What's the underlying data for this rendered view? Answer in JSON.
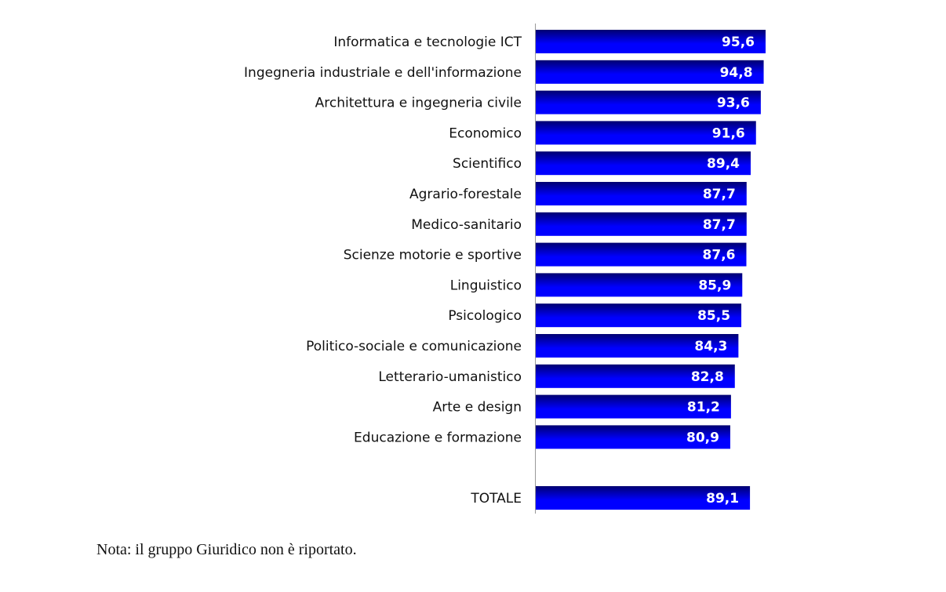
{
  "chart_data": {
    "type": "bar",
    "orientation": "horizontal",
    "categories": [
      "Informatica e tecnologie ICT",
      "Ingegneria industriale e dell'informazione",
      "Architettura e ingegneria civile",
      "Economico",
      "Scientifico",
      "Agrario-forestale",
      "Medico-sanitario",
      "Scienze motorie e sportive",
      "Linguistico",
      "Psicologico",
      "Politico-sociale e comunicazione",
      "Letterario-umanistico",
      "Arte e design",
      "Educazione e formazione"
    ],
    "values": [
      95.6,
      94.8,
      93.6,
      91.6,
      89.4,
      87.7,
      87.7,
      87.6,
      85.9,
      85.5,
      84.3,
      82.8,
      81.2,
      80.9
    ],
    "labels": [
      "95,6",
      "94,8",
      "93,6",
      "91,6",
      "89,4",
      "87,7",
      "87,7",
      "87,6",
      "85,9",
      "85,5",
      "84,3",
      "82,8",
      "81,2",
      "80,9"
    ],
    "total": {
      "category": "TOTALE",
      "value": 89.1,
      "label": "89,1"
    },
    "xlim": [
      0,
      100
    ],
    "grid": false,
    "bar_color_top": "#000070",
    "bar_color_bottom": "#0000ff"
  },
  "note": "Nota: il gruppo Giuridico non è riportato."
}
